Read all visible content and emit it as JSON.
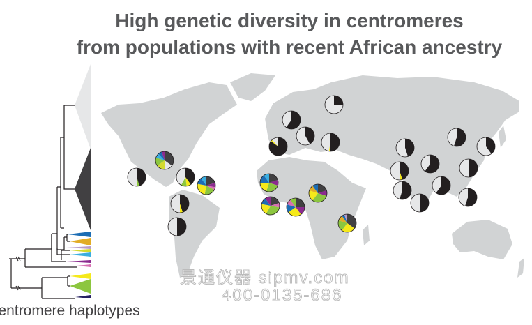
{
  "title": {
    "line1": "High genetic diversity in centromeres",
    "line2": "from populations with recent African ancestry"
  },
  "tree_label": "centromere haplotypes",
  "watermark": {
    "line1": "景通仪器 sipmv.com",
    "line2": "400-0135-686"
  },
  "colors": {
    "map_land": "#d1d3d4",
    "black": "#231f20",
    "light_gray": "#e6e7e8",
    "dark_gray": "#414042",
    "blue": "#1c6db4",
    "orange": "#e2ac25",
    "lavender": "#b89cc8",
    "yellow_green": "#d3da2f",
    "cyan": "#3aaee0",
    "purple": "#8b2b8e",
    "pink": "#d670b2",
    "yellow": "#f5e91a",
    "green": "#8cc63f",
    "navy": "#262262",
    "title_text": "#58595b"
  },
  "haplotype_clades": [
    "light_gray",
    "dark_gray",
    "blue",
    "orange",
    "lavender",
    "yellow_green",
    "cyan",
    "purple",
    "pink",
    "yellow",
    "green",
    "navy"
  ],
  "pie_charts": [
    {
      "region": "northern-europe",
      "slices": [
        [
          "black",
          0.25
        ],
        [
          "light_gray",
          0.75
        ]
      ]
    },
    {
      "region": "europe-1",
      "slices": [
        [
          "black",
          0.6
        ],
        [
          "light_gray",
          0.4
        ]
      ]
    },
    {
      "region": "europe-2",
      "slices": [
        [
          "black",
          0.42
        ],
        [
          "light_gray",
          0.58
        ]
      ]
    },
    {
      "region": "europe-3",
      "slices": [
        [
          "black",
          0.85
        ],
        [
          "yellow",
          0.03
        ],
        [
          "light_gray",
          0.12
        ]
      ]
    },
    {
      "region": "europe-4",
      "slices": [
        [
          "black",
          0.5
        ],
        [
          "yellow",
          0.03
        ],
        [
          "light_gray",
          0.47
        ]
      ]
    },
    {
      "region": "central-asia",
      "slices": [
        [
          "black",
          0.45
        ],
        [
          "light_gray",
          0.55
        ]
      ]
    },
    {
      "region": "east-asia-1",
      "slices": [
        [
          "black",
          0.55
        ],
        [
          "light_gray",
          0.45
        ]
      ]
    },
    {
      "region": "east-asia-2",
      "slices": [
        [
          "black",
          0.4
        ],
        [
          "light_gray",
          0.6
        ]
      ]
    },
    {
      "region": "east-asia-3",
      "slices": [
        [
          "black",
          0.6
        ],
        [
          "light_gray",
          0.4
        ]
      ]
    },
    {
      "region": "south-asia-1",
      "slices": [
        [
          "black",
          0.45
        ],
        [
          "yellow",
          0.04
        ],
        [
          "light_gray",
          0.51
        ]
      ]
    },
    {
      "region": "east-asia-4",
      "slices": [
        [
          "black",
          0.5
        ],
        [
          "light_gray",
          0.5
        ]
      ]
    },
    {
      "region": "south-asia-2",
      "slices": [
        [
          "black",
          0.55
        ],
        [
          "light_gray",
          0.45
        ]
      ]
    },
    {
      "region": "southeast-asia-1",
      "slices": [
        [
          "black",
          0.6
        ],
        [
          "light_gray",
          0.4
        ]
      ]
    },
    {
      "region": "south-asia-3",
      "slices": [
        [
          "black",
          0.5
        ],
        [
          "light_gray",
          0.5
        ]
      ]
    },
    {
      "region": "southeast-asia-2",
      "slices": [
        [
          "black",
          0.55
        ],
        [
          "light_gray",
          0.45
        ]
      ]
    },
    {
      "region": "mexico",
      "slices": [
        [
          "black",
          0.45
        ],
        [
          "green",
          0.04
        ],
        [
          "light_gray",
          0.51
        ]
      ]
    },
    {
      "region": "north-america",
      "slices": [
        [
          "dark_gray",
          0.35
        ],
        [
          "light_gray",
          0.15
        ],
        [
          "yellow_green",
          0.15
        ],
        [
          "green",
          0.15
        ],
        [
          "cyan",
          0.08
        ],
        [
          "blue",
          0.07
        ],
        [
          "purple",
          0.05
        ]
      ]
    },
    {
      "region": "caribbean-1",
      "slices": [
        [
          "black",
          0.4
        ],
        [
          "yellow",
          0.08
        ],
        [
          "green",
          0.1
        ],
        [
          "light_gray",
          0.42
        ]
      ]
    },
    {
      "region": "caribbean-2",
      "slices": [
        [
          "dark_gray",
          0.2
        ],
        [
          "purple",
          0.08
        ],
        [
          "pink",
          0.05
        ],
        [
          "green",
          0.2
        ],
        [
          "yellow",
          0.25
        ],
        [
          "blue",
          0.12
        ],
        [
          "cyan",
          0.1
        ]
      ]
    },
    {
      "region": "south-america-1",
      "slices": [
        [
          "black",
          0.45
        ],
        [
          "yellow",
          0.05
        ],
        [
          "light_gray",
          0.5
        ]
      ]
    },
    {
      "region": "south-america-2",
      "slices": [
        [
          "black",
          0.5
        ],
        [
          "light_gray",
          0.5
        ]
      ]
    },
    {
      "region": "west-africa-1",
      "slices": [
        [
          "dark_gray",
          0.2
        ],
        [
          "purple",
          0.1
        ],
        [
          "green",
          0.25
        ],
        [
          "yellow",
          0.2
        ],
        [
          "blue",
          0.15
        ],
        [
          "cyan",
          0.1
        ]
      ]
    },
    {
      "region": "west-africa-2",
      "slices": [
        [
          "dark_gray",
          0.2
        ],
        [
          "pink",
          0.08
        ],
        [
          "green",
          0.3
        ],
        [
          "yellow",
          0.2
        ],
        [
          "blue",
          0.12
        ],
        [
          "purple",
          0.1
        ]
      ]
    },
    {
      "region": "west-africa-3",
      "slices": [
        [
          "dark_gray",
          0.25
        ],
        [
          "purple",
          0.15
        ],
        [
          "yellow",
          0.25
        ],
        [
          "blue",
          0.15
        ],
        [
          "pink",
          0.1
        ],
        [
          "green",
          0.1
        ]
      ]
    },
    {
      "region": "central-africa",
      "slices": [
        [
          "dark_gray",
          0.2
        ],
        [
          "purple",
          0.1
        ],
        [
          "green",
          0.3
        ],
        [
          "yellow",
          0.2
        ],
        [
          "orange",
          0.1
        ],
        [
          "blue",
          0.1
        ]
      ]
    },
    {
      "region": "east-africa",
      "slices": [
        [
          "dark_gray",
          0.35
        ],
        [
          "yellow",
          0.25
        ],
        [
          "green",
          0.2
        ],
        [
          "orange",
          0.1
        ],
        [
          "blue",
          0.05
        ],
        [
          "lavender",
          0.05
        ]
      ]
    }
  ]
}
